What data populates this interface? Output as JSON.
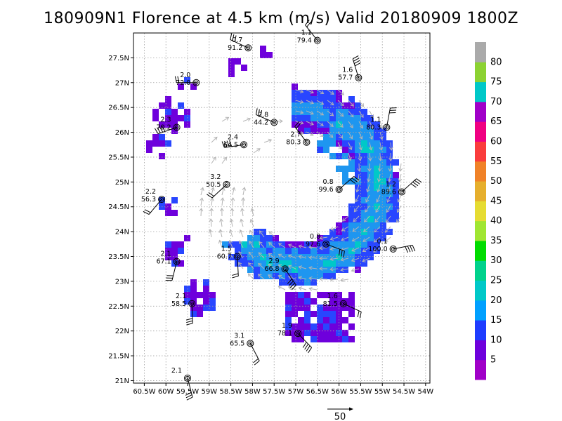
{
  "title": "180909N1 Florence at 4.5 km (m/s) Valid 20180909 1800Z",
  "map": {
    "lon_labels": [
      "60.5W",
      "60W",
      "59.5W",
      "59W",
      "58.5W",
      "58W",
      "57.5W",
      "57W",
      "56.5W",
      "56W",
      "55.5W",
      "55W",
      "54.5W",
      "54W"
    ],
    "lat_labels": [
      "27.5N",
      "27N",
      "26.5N",
      "26N",
      "25.5N",
      "25N",
      "24.5N",
      "24N",
      "23.5N",
      "23N",
      "22.5N",
      "22N",
      "21.5N",
      "21N"
    ],
    "lon_range": [
      -60.75,
      -53.9
    ],
    "lat_range": [
      20.95,
      28.0
    ],
    "storm_center": {
      "lon": -56.9,
      "lat": 24.9
    },
    "grid": true
  },
  "stations": [
    {
      "lon": -56.5,
      "lat": 27.85,
      "top": "1.1",
      "bottom": "79.4"
    },
    {
      "lon": -58.1,
      "lat": 27.7,
      "top": "0.7",
      "bottom": "91.2"
    },
    {
      "lon": -55.55,
      "lat": 27.1,
      "top": "1.6",
      "bottom": "57.7"
    },
    {
      "lon": -59.3,
      "lat": 27.0,
      "top": "2.0",
      "bottom": "72.0"
    },
    {
      "lon": -57.5,
      "lat": 26.2,
      "top": "2.8",
      "bottom": "44.2"
    },
    {
      "lon": -59.75,
      "lat": 26.1,
      "top": "2.3",
      "bottom": "70.2"
    },
    {
      "lon": -56.75,
      "lat": 25.8,
      "top": "2.7",
      "bottom": "80.3"
    },
    {
      "lon": -54.9,
      "lat": 26.1,
      "top": "1.1",
      "bottom": "80.3"
    },
    {
      "lon": -58.2,
      "lat": 25.75,
      "top": "2.4",
      "bottom": "64.5"
    },
    {
      "lon": -58.6,
      "lat": 24.95,
      "top": "3.2",
      "bottom": "50.5"
    },
    {
      "lon": -56.0,
      "lat": 24.85,
      "top": "0.8",
      "bottom": "99.6"
    },
    {
      "lon": -54.55,
      "lat": 24.8,
      "top": "1.2",
      "bottom": "89.6"
    },
    {
      "lon": -60.1,
      "lat": 24.65,
      "top": "2.2",
      "bottom": "56.3"
    },
    {
      "lon": -56.3,
      "lat": 23.75,
      "top": "0.8",
      "bottom": "97.6"
    },
    {
      "lon": -54.75,
      "lat": 23.65,
      "top": "0.1",
      "bottom": "100.0"
    },
    {
      "lon": -58.35,
      "lat": 23.5,
      "top": "1.5",
      "bottom": "60.7"
    },
    {
      "lon": -59.75,
      "lat": 23.4,
      "top": "2.1",
      "bottom": "67.1"
    },
    {
      "lon": -57.25,
      "lat": 23.25,
      "top": "2.9",
      "bottom": "66.8"
    },
    {
      "lon": -55.9,
      "lat": 22.55,
      "top": "1.6",
      "bottom": "81.5"
    },
    {
      "lon": -59.4,
      "lat": 22.55,
      "top": "2.1",
      "bottom": "58.5"
    },
    {
      "lon": -56.95,
      "lat": 21.95,
      "top": "1.9",
      "bottom": "78.1"
    },
    {
      "lon": -58.05,
      "lat": 21.75,
      "top": "3.1",
      "bottom": "65.5"
    },
    {
      "lon": -59.5,
      "lat": 21.05,
      "top": "2.1",
      "bottom": ""
    }
  ],
  "colorbar": {
    "ticks": [
      "5",
      "10",
      "15",
      "20",
      "25",
      "30",
      "35",
      "40",
      "45",
      "50",
      "55",
      "60",
      "65",
      "70",
      "75",
      "80"
    ],
    "colors": [
      "#a000c8",
      "#6e00dc",
      "#1e3cff",
      "#00a0ff",
      "#00c8c8",
      "#00d28c",
      "#00dc00",
      "#a0e632",
      "#e6dc32",
      "#e6af2d",
      "#f08228",
      "#fa3c3c",
      "#f00082",
      "#a000c8",
      "#00c8c8",
      "#8cd232",
      "#aaaaaa"
    ]
  },
  "reference_vector": {
    "label": "50"
  },
  "colors": {
    "wind_arrows": "#b4b4b4",
    "barbs": "#000000",
    "grid": "#a0a0a0"
  }
}
